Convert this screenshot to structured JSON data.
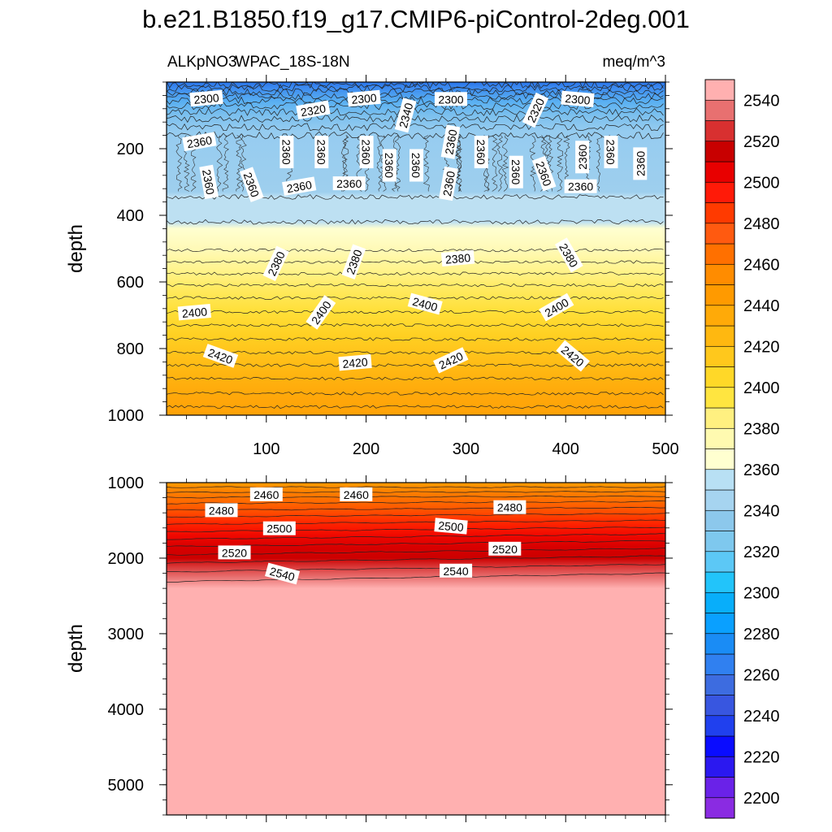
{
  "chart_data": {
    "type": "contour",
    "title": "b.e21.B1850.f19_g17.CMIP6-piControl-2deg.001",
    "variable": "ALKpNO3",
    "region": "WPAC_18S-18N",
    "units": "meq/m^3",
    "xlabel": "",
    "ylabel": "depth",
    "x_ticks": [
      100,
      200,
      300,
      400,
      500
    ],
    "xlim": [
      0,
      500
    ],
    "panels": [
      {
        "name": "upper",
        "ylim": [
          0,
          1000
        ],
        "y_ticks": [
          200,
          400,
          600,
          800,
          1000
        ],
        "contour_labels": [
          {
            "x": 40,
            "y": 50,
            "value": "2300",
            "angle": -5
          },
          {
            "x": 147,
            "y": 85,
            "value": "2320",
            "angle": -10
          },
          {
            "x": 198,
            "y": 50,
            "value": "2300",
            "angle": -5
          },
          {
            "x": 240,
            "y": 100,
            "value": "2340",
            "angle": -75
          },
          {
            "x": 285,
            "y": 52,
            "value": "2300",
            "angle": 0
          },
          {
            "x": 370,
            "y": 85,
            "value": "2320",
            "angle": -65
          },
          {
            "x": 412,
            "y": 52,
            "value": "2300",
            "angle": 5
          },
          {
            "x": 33,
            "y": 180,
            "value": "2360",
            "angle": -10
          },
          {
            "x": 120,
            "y": 210,
            "value": "2360",
            "angle": 90
          },
          {
            "x": 155,
            "y": 210,
            "value": "2360",
            "angle": 90
          },
          {
            "x": 200,
            "y": 210,
            "value": "2360",
            "angle": 90
          },
          {
            "x": 223,
            "y": 250,
            "value": "2360",
            "angle": 90
          },
          {
            "x": 250,
            "y": 250,
            "value": "2360",
            "angle": 90
          },
          {
            "x": 285,
            "y": 180,
            "value": "2360",
            "angle": -80
          },
          {
            "x": 315,
            "y": 210,
            "value": "2360",
            "angle": 90
          },
          {
            "x": 350,
            "y": 270,
            "value": "2360",
            "angle": 90
          },
          {
            "x": 378,
            "y": 275,
            "value": "2360",
            "angle": 70
          },
          {
            "x": 417,
            "y": 225,
            "value": "2360",
            "angle": -90
          },
          {
            "x": 445,
            "y": 210,
            "value": "2360",
            "angle": 90
          },
          {
            "x": 475,
            "y": 245,
            "value": "2360",
            "angle": -90
          },
          {
            "x": 42,
            "y": 300,
            "value": "2360",
            "angle": 80
          },
          {
            "x": 85,
            "y": 308,
            "value": "2360",
            "angle": 70
          },
          {
            "x": 133,
            "y": 314,
            "value": "2360",
            "angle": -10
          },
          {
            "x": 183,
            "y": 305,
            "value": "2360",
            "angle": 0
          },
          {
            "x": 283,
            "y": 305,
            "value": "2360",
            "angle": -80
          },
          {
            "x": 415,
            "y": 314,
            "value": "2360",
            "angle": 0
          },
          {
            "x": 110,
            "y": 545,
            "value": "2380",
            "angle": -65
          },
          {
            "x": 188,
            "y": 540,
            "value": "2380",
            "angle": -70
          },
          {
            "x": 292,
            "y": 530,
            "value": "2380",
            "angle": -5
          },
          {
            "x": 403,
            "y": 520,
            "value": "2380",
            "angle": 60
          },
          {
            "x": 28,
            "y": 692,
            "value": "2400",
            "angle": -5
          },
          {
            "x": 155,
            "y": 692,
            "value": "2400",
            "angle": -55
          },
          {
            "x": 259,
            "y": 667,
            "value": "2400",
            "angle": 15
          },
          {
            "x": 391,
            "y": 677,
            "value": "2400",
            "angle": -30
          },
          {
            "x": 54,
            "y": 823,
            "value": "2420",
            "angle": 20
          },
          {
            "x": 189,
            "y": 843,
            "value": "2420",
            "angle": -5
          },
          {
            "x": 285,
            "y": 836,
            "value": "2420",
            "angle": -25
          },
          {
            "x": 407,
            "y": 823,
            "value": "2420",
            "angle": 40
          }
        ]
      },
      {
        "name": "lower",
        "ylim": [
          1000,
          5400
        ],
        "y_ticks": [
          1000,
          2000,
          3000,
          4000,
          5000
        ],
        "contour_labels": [
          {
            "x": 100,
            "y": 1160,
            "value": "2460",
            "angle": 0
          },
          {
            "x": 190,
            "y": 1160,
            "value": "2460",
            "angle": 0
          },
          {
            "x": 55,
            "y": 1370,
            "value": "2480",
            "angle": 0
          },
          {
            "x": 344,
            "y": 1330,
            "value": "2480",
            "angle": 0
          },
          {
            "x": 113,
            "y": 1610,
            "value": "2500",
            "angle": 0
          },
          {
            "x": 285,
            "y": 1580,
            "value": "2500",
            "angle": 5
          },
          {
            "x": 339,
            "y": 1880,
            "value": "2520",
            "angle": 0
          },
          {
            "x": 68,
            "y": 1930,
            "value": "2520",
            "angle": 0
          },
          {
            "x": 116,
            "y": 2210,
            "value": "2540",
            "angle": 15
          },
          {
            "x": 290,
            "y": 2170,
            "value": "2540",
            "angle": 0
          }
        ]
      }
    ],
    "colorbar": {
      "levels": [
        2200,
        2210,
        2220,
        2230,
        2240,
        2250,
        2260,
        2270,
        2280,
        2290,
        2300,
        2310,
        2320,
        2330,
        2340,
        2350,
        2360,
        2370,
        2380,
        2390,
        2400,
        2410,
        2420,
        2430,
        2440,
        2450,
        2460,
        2470,
        2480,
        2490,
        2500,
        2510,
        2520,
        2530,
        2540,
        2550
      ],
      "labeled": [
        2200,
        2220,
        2240,
        2260,
        2280,
        2300,
        2320,
        2340,
        2360,
        2380,
        2400,
        2420,
        2440,
        2460,
        2480,
        2500,
        2520,
        2540
      ],
      "colors": [
        "#8a2be2",
        "#6a22e8",
        "#2b18f0",
        "#0a0cff",
        "#2040ee",
        "#3856e0",
        "#3d6ce0",
        "#3080f0",
        "#1a8cf5",
        "#0aa0ff",
        "#08aefa",
        "#22c4fa",
        "#5cc8f6",
        "#7ec8ee",
        "#8cc8ec",
        "#a6d4f0",
        "#b8e0f4",
        "#ffffd0",
        "#fffab0",
        "#fff080",
        "#ffe540",
        "#ffd828",
        "#ffc81c",
        "#ffb810",
        "#ffaa08",
        "#ff9a00",
        "#ff8c00",
        "#ff7000",
        "#ff5a10",
        "#ff3a00",
        "#ff1a08",
        "#e80000",
        "#c80000",
        "#d83030",
        "#e87070",
        "#ffb0b0"
      ]
    },
    "upper_field_colors": [
      {
        "depth": 0,
        "color": "#2a74e8"
      },
      {
        "depth": 15,
        "color": "#3a88f0"
      },
      {
        "depth": 35,
        "color": "#4a9cf0"
      },
      {
        "depth": 60,
        "color": "#5ab0f2"
      },
      {
        "depth": 100,
        "color": "#7cc0ee"
      },
      {
        "depth": 150,
        "color": "#96ccf0"
      },
      {
        "depth": 330,
        "color": "#9ecfee"
      },
      {
        "depth": 345,
        "color": "#bde0f2"
      },
      {
        "depth": 420,
        "color": "#bde0f2"
      },
      {
        "depth": 440,
        "color": "#ffffd0"
      },
      {
        "depth": 500,
        "color": "#fffab8"
      },
      {
        "depth": 560,
        "color": "#fff490"
      },
      {
        "depth": 620,
        "color": "#ffea60"
      },
      {
        "depth": 690,
        "color": "#ffdf38"
      },
      {
        "depth": 760,
        "color": "#ffd022"
      },
      {
        "depth": 820,
        "color": "#ffc21a"
      },
      {
        "depth": 880,
        "color": "#ffb410"
      },
      {
        "depth": 940,
        "color": "#ffa80a"
      },
      {
        "depth": 1000,
        "color": "#ffa208"
      }
    ],
    "lower_field_colors": [
      {
        "depth": 1000,
        "color": "#ff9c00"
      },
      {
        "depth": 1100,
        "color": "#ff8400"
      },
      {
        "depth": 1250,
        "color": "#ff6a00"
      },
      {
        "depth": 1400,
        "color": "#ff4a00"
      },
      {
        "depth": 1550,
        "color": "#ff2200"
      },
      {
        "depth": 1700,
        "color": "#f00800"
      },
      {
        "depth": 1850,
        "color": "#d80000"
      },
      {
        "depth": 2000,
        "color": "#cc0000"
      },
      {
        "depth": 2100,
        "color": "#d83232"
      },
      {
        "depth": 2250,
        "color": "#e87070"
      },
      {
        "depth": 2400,
        "color": "#ffb0b0"
      },
      {
        "depth": 5400,
        "color": "#ffb0b0"
      }
    ],
    "lower_isolines": [
      1060,
      1120,
      1180,
      1250,
      1330,
      1410,
      1500,
      1590,
      1680,
      1770,
      1870,
      1970,
      2080,
      2200
    ]
  }
}
